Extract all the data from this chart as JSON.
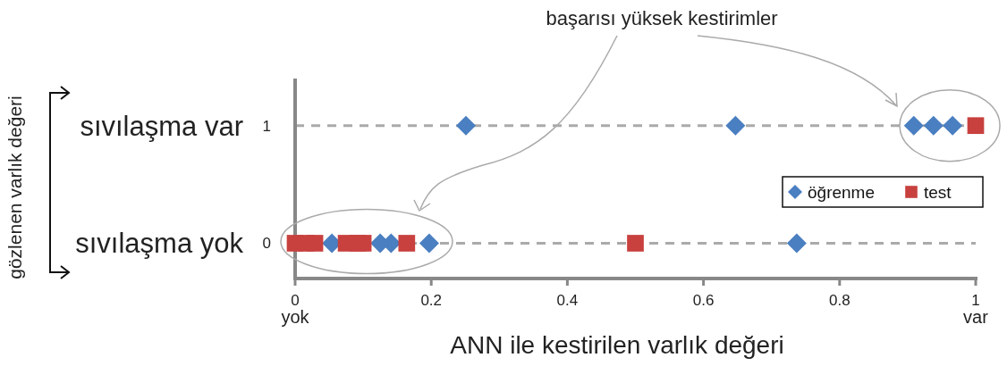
{
  "chart_data": {
    "type": "scatter",
    "xlabel": "ANN ile kestirilen varlık değeri",
    "annotations": [
      "başarısı yüksek kestirimler",
      "sıvılaşma var",
      "sıvılaşma yok",
      "yok",
      "var",
      "gözlenen varlık değeri"
    ],
    "xlim": [
      0,
      1
    ],
    "xticks": [
      0,
      0.2,
      0.4,
      0.6,
      0.8,
      1
    ],
    "ylim": [
      -0.3,
      1.4
    ],
    "yticks": [
      0,
      1
    ],
    "grid": "y",
    "line_style": "dashed",
    "legend": "right",
    "series": [
      {
        "name": "öğrenme",
        "color": "#4a7fc1",
        "marker": "diamond",
        "x": [
          0.251,
          0.647,
          0.909,
          0.938,
          0.966,
          0.054,
          0.125,
          0.141,
          0.197,
          0.737
        ],
        "values": [
          1,
          1,
          1,
          1,
          1,
          0,
          0,
          0,
          0,
          0
        ]
      },
      {
        "name": "test",
        "color": "#c8413f",
        "marker": "square",
        "x": [
          1,
          0,
          0.016,
          0.029,
          0.075,
          0.092,
          0.1,
          0.164,
          0.5
        ],
        "values": [
          1,
          0,
          0,
          0,
          0,
          0,
          0,
          0,
          0
        ]
      }
    ]
  }
}
